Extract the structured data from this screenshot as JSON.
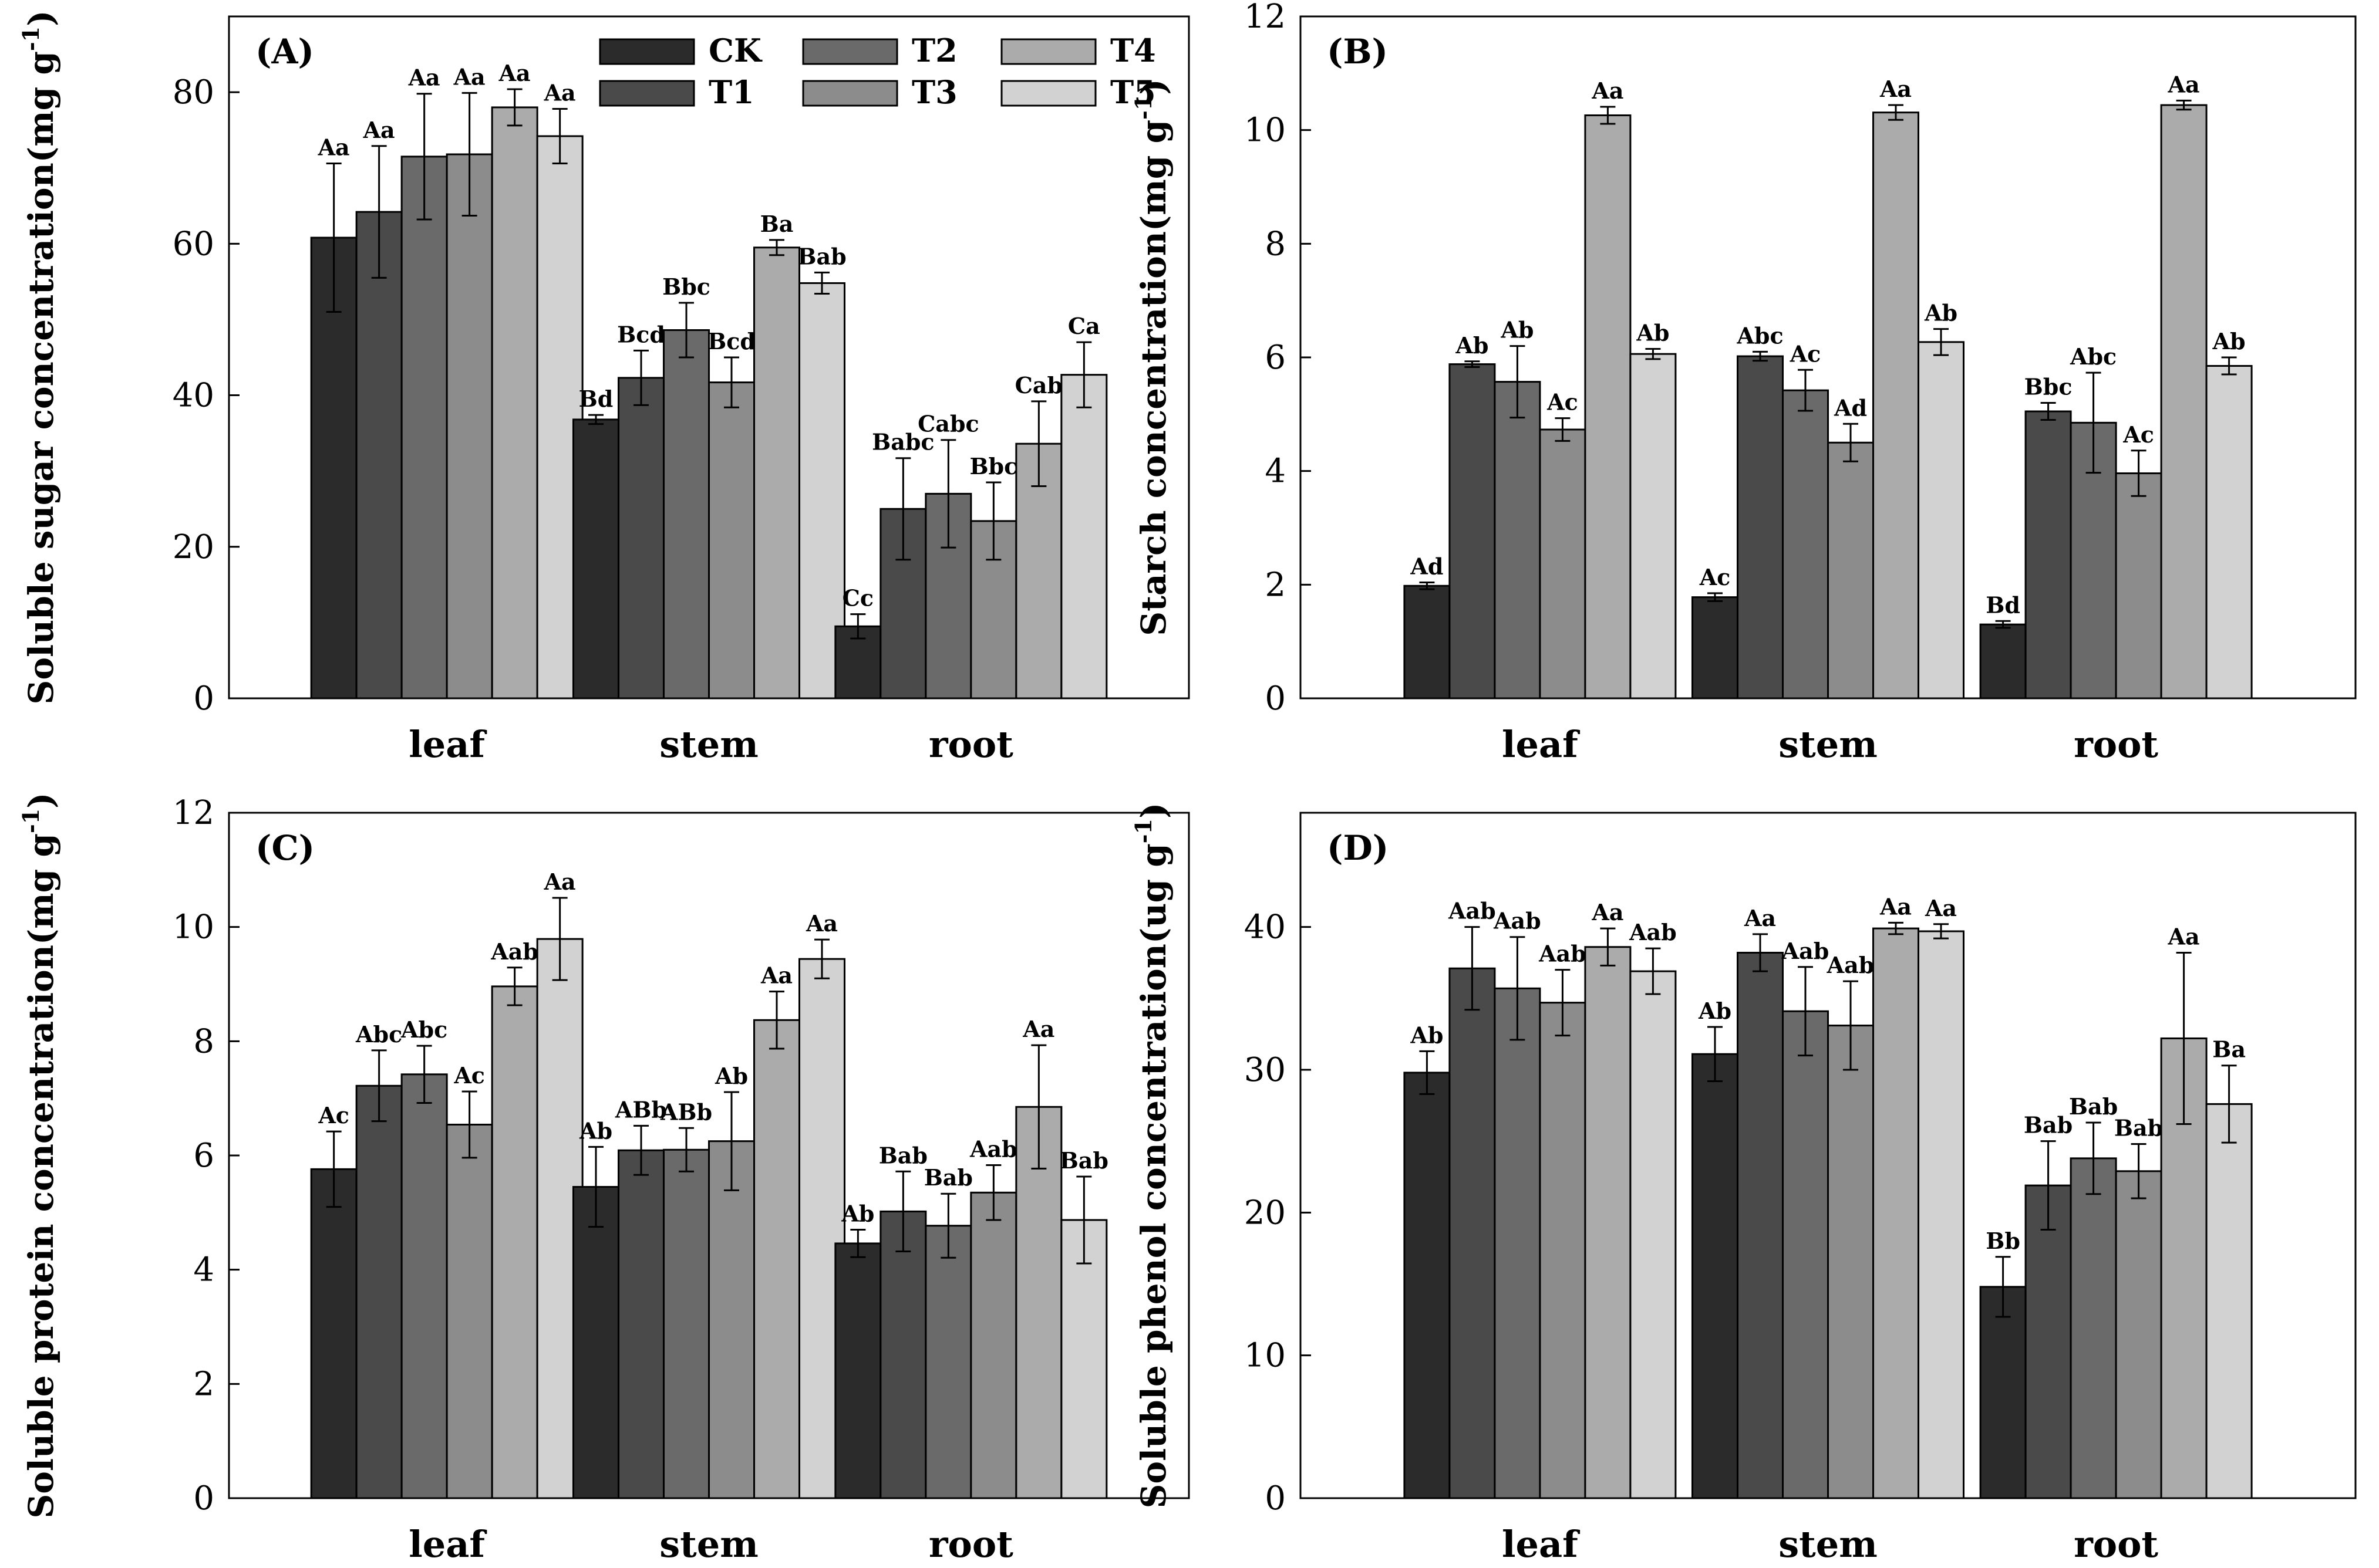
{
  "chart_data": [
    {
      "type": "bar",
      "panel": "(A)",
      "ylabel": "Soluble sugar concentration(mg g",
      "ylabel_sup": "-1",
      "ylabel_close": ")",
      "categories": [
        "leaf",
        "stem",
        "root"
      ],
      "ylim": [
        0,
        90
      ],
      "yticks": [
        0,
        20,
        40,
        60,
        80
      ],
      "series": [
        {
          "name": "CK",
          "values": [
            60.8,
            36.8,
            9.5
          ],
          "errors": [
            9.8,
            0.6,
            1.6
          ],
          "labels": [
            "Aa",
            "Bd",
            "Cc"
          ]
        },
        {
          "name": "T1",
          "values": [
            64.2,
            42.3,
            25.0
          ],
          "errors": [
            8.7,
            3.6,
            6.7
          ],
          "labels": [
            "Aa",
            "Bcd",
            "Babc"
          ]
        },
        {
          "name": "T2",
          "values": [
            71.5,
            48.6,
            27.0
          ],
          "errors": [
            8.3,
            3.6,
            7.1
          ],
          "labels": [
            "Aa",
            "Bbc",
            "Cabc"
          ]
        },
        {
          "name": "T3",
          "values": [
            71.8,
            41.7,
            23.4
          ],
          "errors": [
            8.1,
            3.3,
            5.1
          ],
          "labels": [
            "Aa",
            "Bcd",
            "Bbc"
          ]
        },
        {
          "name": "T4",
          "values": [
            78.0,
            59.5,
            33.6
          ],
          "errors": [
            2.4,
            1.0,
            5.6
          ],
          "labels": [
            "Aa",
            "Ba",
            "Cab"
          ]
        },
        {
          "name": "T5",
          "values": [
            74.2,
            54.8,
            42.7
          ],
          "errors": [
            3.6,
            1.4,
            4.3
          ],
          "labels": [
            "Aa",
            "Bab",
            "Ca"
          ]
        }
      ]
    },
    {
      "type": "bar",
      "panel": "(B)",
      "ylabel": "Starch concentration(mg g",
      "ylabel_sup": "-1",
      "ylabel_close": ")",
      "categories": [
        "leaf",
        "stem",
        "root"
      ],
      "ylim": [
        0,
        12
      ],
      "yticks": [
        0,
        2,
        4,
        6,
        8,
        10,
        12
      ],
      "series": [
        {
          "name": "CK",
          "values": [
            1.98,
            1.78,
            1.3
          ],
          "errors": [
            0.06,
            0.07,
            0.06
          ],
          "labels": [
            "Ad",
            "Ac",
            "Bd"
          ]
        },
        {
          "name": "T1",
          "values": [
            5.88,
            6.02,
            5.05
          ],
          "errors": [
            0.05,
            0.08,
            0.15
          ],
          "labels": [
            "Ab",
            "Abc",
            "Bbc"
          ]
        },
        {
          "name": "T2",
          "values": [
            5.57,
            5.42,
            4.85
          ],
          "errors": [
            0.63,
            0.36,
            0.88
          ],
          "labels": [
            "Ab",
            "Ac",
            "Abc"
          ]
        },
        {
          "name": "T3",
          "values": [
            4.73,
            4.5,
            3.96
          ],
          "errors": [
            0.2,
            0.33,
            0.4
          ],
          "labels": [
            "Ac",
            "Ad",
            "Ac"
          ]
        },
        {
          "name": "T4",
          "values": [
            10.26,
            10.31,
            10.44
          ],
          "errors": [
            0.15,
            0.13,
            0.08
          ],
          "labels": [
            "Aa",
            "Aa",
            "Aa"
          ]
        },
        {
          "name": "T5",
          "values": [
            6.06,
            6.27,
            5.85
          ],
          "errors": [
            0.09,
            0.23,
            0.15
          ],
          "labels": [
            "Ab",
            "Ab",
            "Ab"
          ]
        }
      ]
    },
    {
      "type": "bar",
      "panel": "(C)",
      "ylabel": "Soluble protein concentration(mg g",
      "ylabel_sup": "-1",
      "ylabel_close": ")",
      "categories": [
        "leaf",
        "stem",
        "root"
      ],
      "ylim": [
        0,
        12
      ],
      "yticks": [
        0,
        2,
        4,
        6,
        8,
        10,
        12
      ],
      "series": [
        {
          "name": "CK",
          "values": [
            5.76,
            5.45,
            4.46
          ],
          "errors": [
            0.66,
            0.7,
            0.24
          ],
          "labels": [
            "Ac",
            "Ab",
            "Ab"
          ]
        },
        {
          "name": "T1",
          "values": [
            7.22,
            6.09,
            5.02
          ],
          "errors": [
            0.62,
            0.43,
            0.7
          ],
          "labels": [
            "Abc",
            "ABb",
            "Bab"
          ]
        },
        {
          "name": "T2",
          "values": [
            7.42,
            6.1,
            4.77
          ],
          "errors": [
            0.5,
            0.38,
            0.56
          ],
          "labels": [
            "Abc",
            "ABb",
            "Bab"
          ]
        },
        {
          "name": "T3",
          "values": [
            6.54,
            6.25,
            5.35
          ],
          "errors": [
            0.58,
            0.86,
            0.48
          ],
          "labels": [
            "Ac",
            "Ab",
            "Aab"
          ]
        },
        {
          "name": "T4",
          "values": [
            8.96,
            8.37,
            6.85
          ],
          "errors": [
            0.33,
            0.5,
            1.08
          ],
          "labels": [
            "Aab",
            "Aa",
            "Aa"
          ]
        },
        {
          "name": "T5",
          "values": [
            9.79,
            9.44,
            4.87
          ],
          "errors": [
            0.72,
            0.34,
            0.76
          ],
          "labels": [
            "Aa",
            "Aa",
            "Bab"
          ]
        }
      ]
    },
    {
      "type": "bar",
      "panel": "(D)",
      "ylabel": "Soluble phenol concentration(ug g",
      "ylabel_sup": "-1",
      "ylabel_close": ")",
      "categories": [
        "leaf",
        "stem",
        "root"
      ],
      "ylim": [
        0,
        48
      ],
      "yticks": [
        0,
        10,
        20,
        30,
        40
      ],
      "series": [
        {
          "name": "CK",
          "values": [
            29.8,
            31.1,
            14.8
          ],
          "errors": [
            1.5,
            1.9,
            2.1
          ],
          "labels": [
            "Ab",
            "Ab",
            "Bb"
          ]
        },
        {
          "name": "T1",
          "values": [
            37.1,
            38.2,
            21.9
          ],
          "errors": [
            2.9,
            1.3,
            3.1
          ],
          "labels": [
            "Aab",
            "Aa",
            "Bab"
          ]
        },
        {
          "name": "T2",
          "values": [
            35.7,
            34.1,
            23.8
          ],
          "errors": [
            3.6,
            3.1,
            2.5
          ],
          "labels": [
            "Aab",
            "Aab",
            "Bab"
          ]
        },
        {
          "name": "T3",
          "values": [
            34.7,
            33.1,
            22.9
          ],
          "errors": [
            2.3,
            3.1,
            1.9
          ],
          "labels": [
            "Aab",
            "Aab",
            "Bab"
          ]
        },
        {
          "name": "T4",
          "values": [
            38.6,
            39.9,
            32.2
          ],
          "errors": [
            1.3,
            0.4,
            6.0
          ],
          "labels": [
            "Aa",
            "Aa",
            "Aa"
          ]
        },
        {
          "name": "T5",
          "values": [
            36.9,
            39.7,
            27.6
          ],
          "errors": [
            1.6,
            0.5,
            2.7
          ],
          "labels": [
            "Aab",
            "Aa",
            "Ba"
          ]
        }
      ]
    }
  ],
  "legend": {
    "entries": [
      "CK",
      "T1",
      "T2",
      "T3",
      "T4",
      "T5"
    ],
    "colors": [
      "#2b2b2b",
      "#4a4a4a",
      "#6a6a6a",
      "#8c8c8c",
      "#ababab",
      "#d2d2d2"
    ]
  },
  "colors": {
    "axis": "#000000",
    "bar_edge": "#000000",
    "background": "#ffffff"
  }
}
